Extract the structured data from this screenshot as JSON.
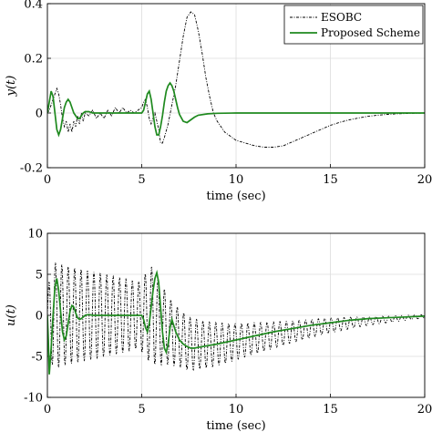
{
  "chart_data": [
    {
      "type": "line",
      "title": "",
      "xlabel": "time (sec)",
      "ylabel": "y(t)",
      "xlim": [
        0,
        20
      ],
      "ylim": [
        -0.2,
        0.4
      ],
      "xticks": [
        "0",
        "5",
        "10",
        "15",
        "20"
      ],
      "yticks": [
        "-0.2",
        "0",
        "0.2",
        "0.4"
      ],
      "grid": true,
      "legend_position": "top-right",
      "series": [
        {
          "name": "ESOBC",
          "color": "#000000",
          "style": "dash-dot",
          "x": [
            0,
            0.1,
            0.2,
            0.3,
            0.4,
            0.5,
            0.6,
            0.7,
            0.8,
            0.9,
            1.0,
            1.1,
            1.2,
            1.3,
            1.4,
            1.5,
            1.6,
            1.7,
            1.8,
            1.9,
            2.0,
            2.2,
            2.4,
            2.6,
            2.8,
            3.0,
            3.2,
            3.4,
            3.6,
            3.8,
            4.0,
            4.2,
            4.4,
            4.6,
            4.8,
            5.0,
            5.1,
            5.2,
            5.3,
            5.4,
            5.5,
            5.6,
            5.7,
            5.8,
            5.9,
            6.0,
            6.1,
            6.2,
            6.4,
            6.6,
            6.8,
            7.0,
            7.2,
            7.4,
            7.6,
            7.8,
            8.0,
            8.2,
            8.4,
            8.6,
            8.8,
            9.0,
            9.2,
            9.4,
            9.6,
            9.8,
            10.0,
            10.5,
            11.0,
            11.5,
            12.0,
            12.5,
            13.0,
            13.5,
            14.0,
            14.5,
            15.0,
            15.5,
            16.0,
            16.5,
            17.0,
            17.5,
            18.0,
            18.5,
            19.0,
            19.5,
            20.0
          ],
          "y": [
            0,
            0.01,
            0.03,
            0.05,
            0.07,
            0.09,
            0.07,
            0.03,
            -0.02,
            -0.05,
            -0.03,
            -0.07,
            -0.04,
            -0.07,
            -0.03,
            -0.05,
            -0.01,
            -0.04,
            0.0,
            -0.03,
            0.0,
            -0.01,
            0.01,
            -0.02,
            0.0,
            -0.02,
            0.01,
            -0.01,
            0.02,
            0.0,
            0.02,
            0.0,
            0.01,
            0.0,
            0.01,
            0.02,
            0.04,
            0.05,
            0.02,
            -0.02,
            -0.04,
            -0.02,
            0.0,
            -0.03,
            -0.06,
            -0.11,
            -0.11,
            -0.09,
            -0.04,
            0.03,
            0.1,
            0.19,
            0.28,
            0.35,
            0.37,
            0.36,
            0.3,
            0.22,
            0.13,
            0.06,
            0.0,
            -0.03,
            -0.05,
            -0.07,
            -0.08,
            -0.09,
            -0.1,
            -0.11,
            -0.12,
            -0.125,
            -0.125,
            -0.12,
            -0.105,
            -0.09,
            -0.075,
            -0.06,
            -0.045,
            -0.034,
            -0.025,
            -0.018,
            -0.012,
            -0.008,
            -0.005,
            -0.003,
            -0.002,
            -0.001,
            0.0
          ]
        },
        {
          "name": "Proposed Scheme",
          "color": "#1f8a1f",
          "style": "solid",
          "x": [
            0,
            0.1,
            0.2,
            0.3,
            0.4,
            0.5,
            0.6,
            0.7,
            0.8,
            0.9,
            1.0,
            1.1,
            1.2,
            1.3,
            1.4,
            1.5,
            1.6,
            1.7,
            1.8,
            1.9,
            2.0,
            2.2,
            2.4,
            2.6,
            2.8,
            3.0,
            3.5,
            4.0,
            4.5,
            5.0,
            5.1,
            5.2,
            5.3,
            5.4,
            5.5,
            5.6,
            5.7,
            5.8,
            5.9,
            6.0,
            6.1,
            6.2,
            6.3,
            6.4,
            6.5,
            6.6,
            6.7,
            6.8,
            6.9,
            7.0,
            7.2,
            7.4,
            7.6,
            7.8,
            8.0,
            8.5,
            9.0,
            10.0,
            12.0,
            15.0,
            20.0
          ],
          "y": [
            0,
            0.04,
            0.08,
            0.06,
            0.0,
            -0.06,
            -0.08,
            -0.06,
            -0.02,
            0.02,
            0.04,
            0.05,
            0.04,
            0.02,
            0.0,
            -0.01,
            -0.02,
            -0.02,
            -0.01,
            0.0,
            0.005,
            0.005,
            0.0,
            0.0,
            0.0,
            0.0,
            0.0,
            0.0,
            0.0,
            0.0,
            0.01,
            0.04,
            0.07,
            0.08,
            0.05,
            0.0,
            -0.05,
            -0.08,
            -0.08,
            -0.05,
            -0.01,
            0.04,
            0.08,
            0.1,
            0.11,
            0.1,
            0.08,
            0.05,
            0.02,
            -0.005,
            -0.03,
            -0.035,
            -0.025,
            -0.015,
            -0.008,
            -0.003,
            -0.001,
            0,
            0,
            0,
            0
          ]
        }
      ]
    },
    {
      "type": "line",
      "title": "",
      "xlabel": "time (sec)",
      "ylabel": "u(t)",
      "xlim": [
        0,
        20
      ],
      "ylim": [
        -10,
        10
      ],
      "xticks": [
        "0",
        "5",
        "10",
        "15",
        "20"
      ],
      "yticks": [
        "-10",
        "-5",
        "0",
        "5",
        "10"
      ],
      "grid": true,
      "legend_position": "none",
      "series": [
        {
          "name": "ESOBC",
          "color": "#000000",
          "style": "dash-dot",
          "oscillation_period": 0.34,
          "envelope_t": [
            0,
            0.3,
            1.0,
            2.0,
            3.0,
            4.0,
            4.8,
            5.0,
            5.5,
            6.0,
            6.5,
            7.0,
            8.0,
            9.0,
            10.0,
            11.0,
            12.0,
            13.0,
            14.0,
            15.0,
            16.0,
            17.0,
            18.0,
            19.0,
            20.0
          ],
          "envelope_amp": [
            3,
            6.5,
            6.0,
            5.5,
            5.0,
            4.5,
            4.0,
            4.5,
            6.0,
            5.0,
            4.0,
            3.5,
            3.0,
            2.6,
            2.2,
            1.9,
            1.6,
            1.3,
            1.1,
            0.9,
            0.7,
            0.5,
            0.4,
            0.3,
            0.2
          ],
          "baseline_t": [
            0,
            5.5,
            6.5,
            7.5,
            8.5,
            9.5,
            10.5,
            11.5,
            12.5,
            13.5,
            14.5,
            15.5,
            16.5,
            17.5,
            18.5,
            19.5,
            20.0
          ],
          "baseline_v": [
            0,
            0,
            -2.0,
            -3.5,
            -3.6,
            -3.4,
            -3.0,
            -2.6,
            -2.2,
            -1.8,
            -1.4,
            -1.1,
            -0.8,
            -0.6,
            -0.4,
            -0.2,
            -0.1
          ]
        },
        {
          "name": "Proposed Scheme",
          "color": "#1f8a1f",
          "style": "solid",
          "x": [
            0,
            0.05,
            0.1,
            0.2,
            0.3,
            0.4,
            0.5,
            0.6,
            0.7,
            0.8,
            0.9,
            1.0,
            1.1,
            1.2,
            1.3,
            1.4,
            1.5,
            1.6,
            1.7,
            1.8,
            1.9,
            2.0,
            2.2,
            2.4,
            2.6,
            2.8,
            3.0,
            3.5,
            4.0,
            4.5,
            5.0,
            5.1,
            5.2,
            5.3,
            5.4,
            5.5,
            5.6,
            5.7,
            5.8,
            5.9,
            6.0,
            6.1,
            6.2,
            6.3,
            6.4,
            6.5,
            6.6,
            6.8,
            7.0,
            7.2,
            7.4,
            7.6,
            7.8,
            8.0,
            9.0,
            10.0,
            11.0,
            12.0,
            13.0,
            14.0,
            15.0,
            16.0,
            17.0,
            18.0,
            19.0,
            20.0
          ],
          "y": [
            0,
            -3,
            -7.2,
            -4,
            0,
            3.5,
            4.5,
            3.0,
            0.5,
            -2.0,
            -3.0,
            -2.5,
            -1.0,
            0.5,
            1.2,
            1.0,
            0.3,
            -0.3,
            -0.5,
            -0.4,
            -0.2,
            0.0,
            0.1,
            0.0,
            0.0,
            0.0,
            0.0,
            0.0,
            0.0,
            0.0,
            0.0,
            -0.5,
            -1.5,
            -2.0,
            -1.0,
            1.0,
            3.0,
            4.5,
            5.2,
            4.0,
            1.0,
            -2.0,
            -4.0,
            -4.5,
            -3.5,
            -1.5,
            -0.5,
            -2.0,
            -3.0,
            -3.5,
            -3.8,
            -4.0,
            -4.0,
            -3.9,
            -3.5,
            -3.0,
            -2.5,
            -2.0,
            -1.6,
            -1.2,
            -0.9,
            -0.6,
            -0.4,
            -0.3,
            -0.2,
            -0.1
          ]
        }
      ]
    }
  ]
}
